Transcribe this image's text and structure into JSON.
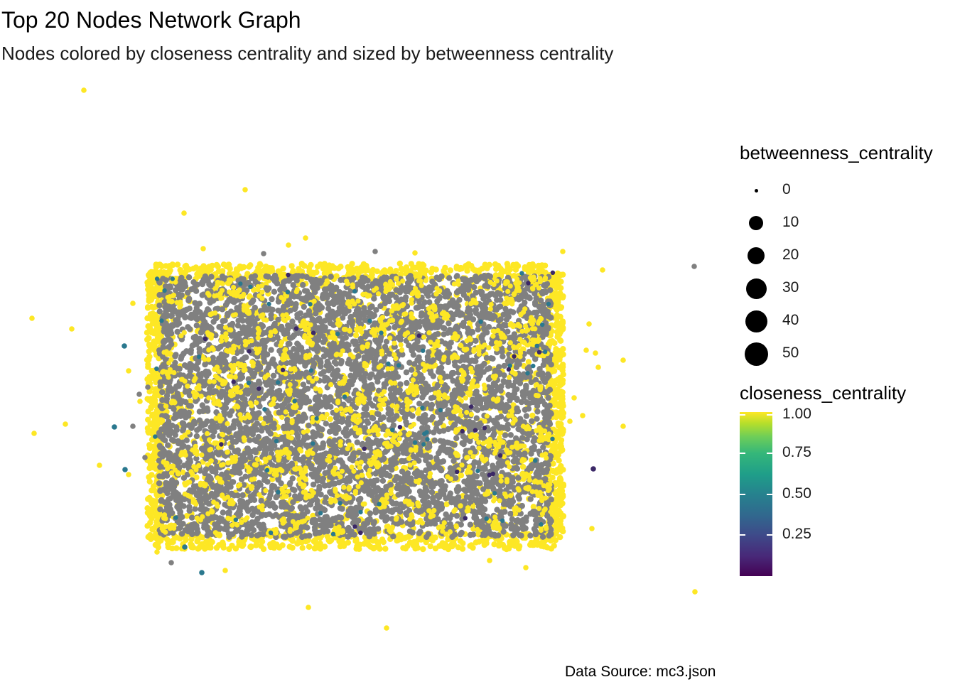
{
  "chart_data": {
    "type": "scatter",
    "title": "Top 20 Nodes Network Graph",
    "subtitle": "Nodes colored by closeness centrality and sized by betweenness centrality",
    "caption": "Data Source: mc3.json",
    "legends": {
      "size": {
        "title": "betweenness_centrality",
        "breaks": [
          "0",
          "10",
          "20",
          "30",
          "40",
          "50"
        ],
        "values": [
          0,
          10,
          20,
          30,
          40,
          50
        ]
      },
      "color": {
        "title": "closeness_centrality",
        "breaks": [
          "1.00",
          "0.75",
          "0.50",
          "0.25"
        ],
        "values": [
          1.0,
          0.75,
          0.5,
          0.25
        ],
        "range": [
          0,
          1
        ],
        "palette": [
          "#440154",
          "#3e4a89",
          "#26828e",
          "#35b779",
          "#fde725"
        ],
        "na_color": "#808080"
      }
    },
    "layout_region": "central rectangle of densely packed grey nodes with yellow nodes concentrated along the border, plus scattered outlier nodes",
    "grid": false,
    "axes": "hidden"
  },
  "colors": {
    "grey_node": "#808080",
    "yellow_node": "#fde725",
    "teal_node": "#2a788e",
    "dark_node": "#3b2867"
  }
}
